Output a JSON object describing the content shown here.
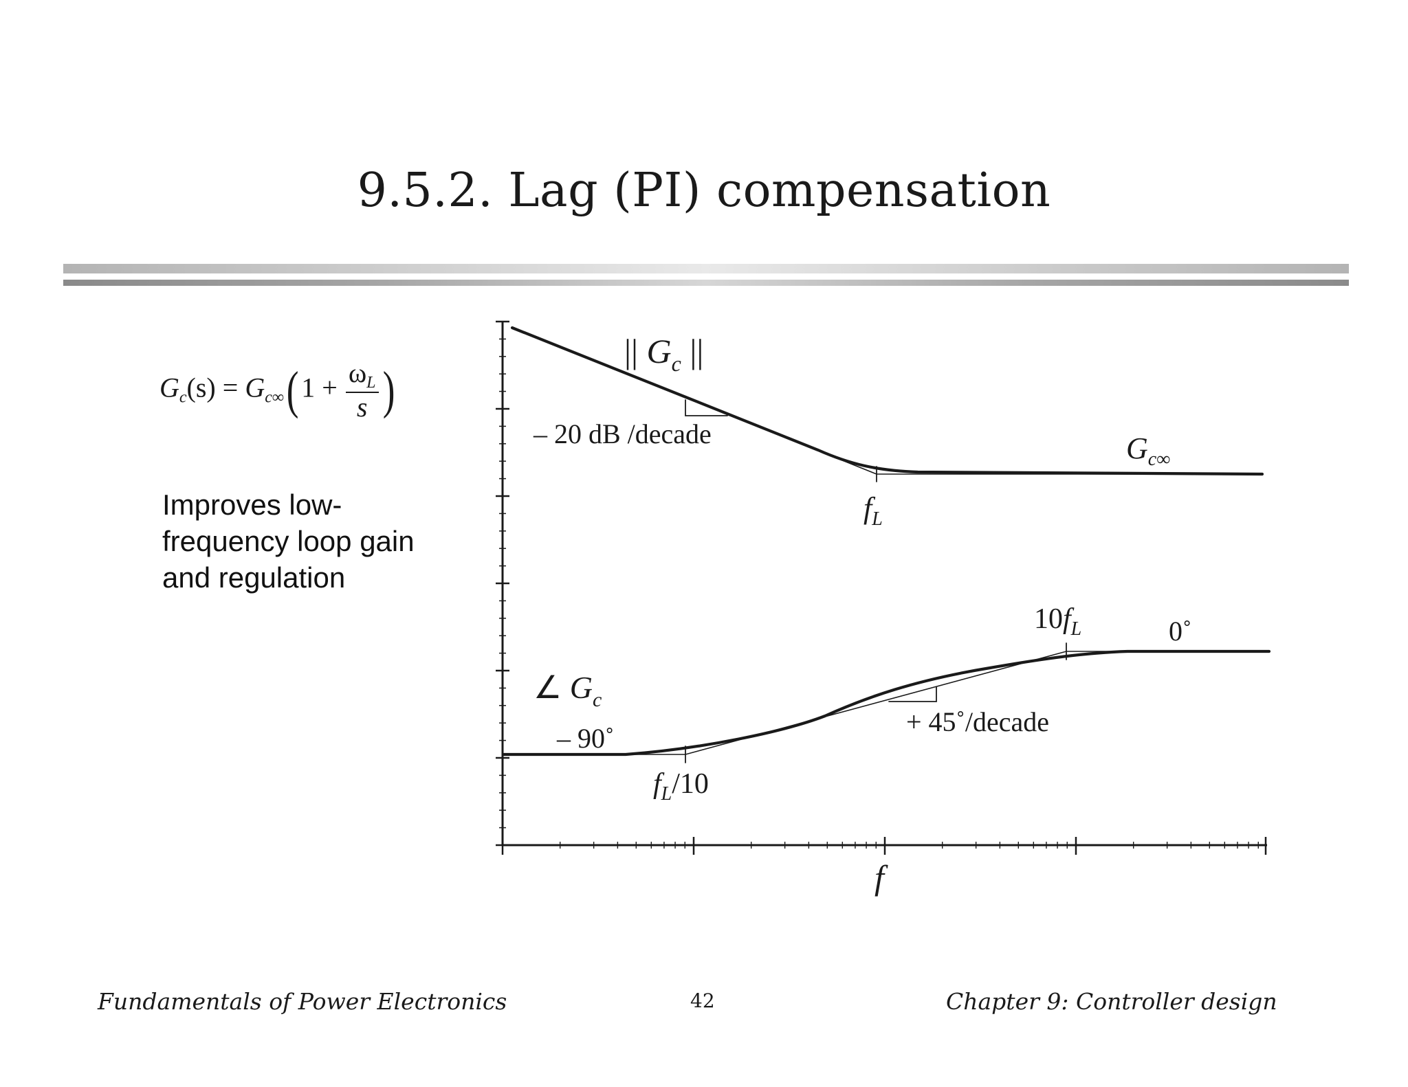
{
  "slide": {
    "title": "9.5.2.  Lag (PI) compensation",
    "formula": {
      "lhs": "G",
      "lhs_sub": "c",
      "lhs_arg": "(s) = ",
      "rhs": "G",
      "rhs_sub": "c∞",
      "one_plus": "1 + ",
      "num": "ω",
      "num_sub": "L",
      "den": "s"
    },
    "note": [
      "Improves low-",
      "frequency loop gain",
      "and regulation"
    ]
  },
  "diagram": {
    "magnitude": {
      "label_open": "|| ",
      "label_G": "G",
      "label_sub": "c",
      "label_close": " ||",
      "slope_label": "– 20 dB /decade",
      "asymptote_G": "G",
      "asymptote_sub": "c∞",
      "corner_f": "f",
      "corner_sub": "L"
    },
    "phase": {
      "label_angle": "∠ ",
      "label_G": "G",
      "label_sub": "c",
      "low_label": "– 90˚",
      "high_label": "0˚",
      "slope_label": "+ 45˚/decade",
      "low_corner_f": "f",
      "low_corner_sub": "L",
      "low_corner_tail": "/10",
      "high_corner_pre": "10",
      "high_corner_f": "f",
      "high_corner_sub": "L"
    },
    "x_axis_label": "f"
  },
  "footer": {
    "left": "Fundamentals of Power Electronics",
    "page": "42",
    "right": "Chapter 9: Controller design"
  }
}
